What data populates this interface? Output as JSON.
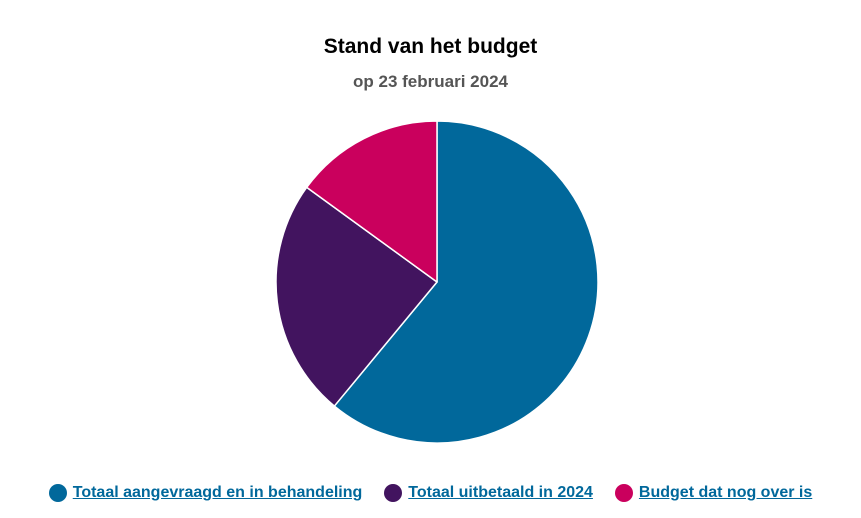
{
  "chart_data": {
    "type": "pie",
    "title": "Stand van het budget",
    "subtitle": "op 23 februari 2024",
    "start_angle_deg": 0,
    "direction": "clockwise",
    "legend_position": "bottom",
    "series": [
      {
        "name": "Totaal aangevraagd en in behandeling",
        "value": 61,
        "color": "#01689b"
      },
      {
        "name": "Totaal uitbetaald in 2024",
        "value": 24,
        "color": "#42145f"
      },
      {
        "name": "Budget dat nog over is",
        "value": 15,
        "color": "#ca005d"
      }
    ]
  }
}
